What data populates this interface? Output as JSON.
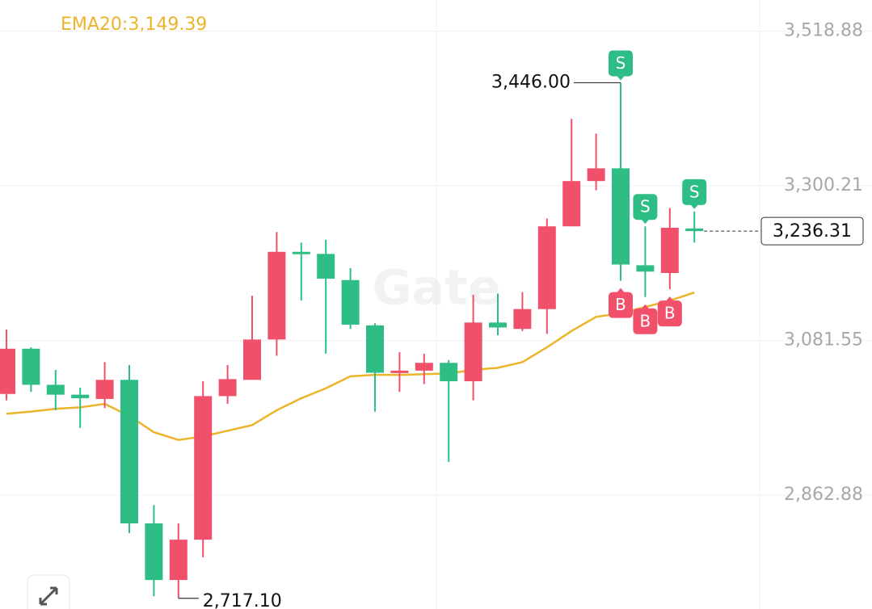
{
  "chart_data": {
    "type": "candlestick",
    "up_color": "#f0506a",
    "down_color": "#2ebd85",
    "open": [
      3006,
      3070,
      3019,
      3005,
      2999,
      3026,
      2823,
      2743,
      2800,
      3003,
      3026,
      3083,
      3207,
      3204,
      3167,
      3103,
      3036,
      3039,
      3050,
      3024,
      3107,
      3098,
      3126,
      3243,
      3307,
      3325,
      3188,
      3177,
      3240
    ],
    "high": [
      3097,
      3072,
      3040,
      3015,
      3051,
      3047,
      2849,
      2823,
      3024,
      3047,
      3145,
      3235,
      3220,
      3224,
      3184,
      3106,
      3065,
      3063,
      3054,
      3146,
      3148,
      3150,
      3254,
      3395,
      3374,
      3446,
      3243,
      3269,
      3264
    ],
    "low": [
      2997,
      3009,
      2983,
      2958,
      2986,
      2809,
      2720,
      2717.1,
      2775,
      2992,
      3026,
      3060,
      3138,
      3063,
      3098,
      2981,
      3009,
      3020,
      2910,
      2997,
      3089,
      3095,
      3091,
      3243,
      3294,
      3166,
      3143,
      3154,
      3220
    ],
    "close": [
      3070,
      3019,
      3005,
      3000,
      3026,
      2823,
      2743,
      2800,
      3003,
      3027,
      3083,
      3207,
      3204,
      3169,
      3104,
      3036,
      3039,
      3050,
      3024,
      3107,
      3100,
      3126,
      3243,
      3307,
      3325,
      3189,
      3179,
      3241,
      3236.31
    ],
    "ema": {
      "label": "EMA20:3,149.39",
      "color": "#ecb42a",
      "values": [
        2978,
        2981,
        2985,
        2987,
        2992,
        2975,
        2952,
        2941,
        2946,
        2954,
        2962,
        2983,
        3000,
        3014,
        3031,
        3033,
        3033,
        3034,
        3035,
        3040,
        3043,
        3051,
        3072,
        3095,
        3115,
        3120,
        3129,
        3138,
        3149.39
      ]
    },
    "ylim": [
      2702,
      3563
    ],
    "yticks": [
      {
        "value": 3518.88,
        "label": "3,518.88"
      },
      {
        "value": 3300.21,
        "label": "3,300.21"
      },
      {
        "value": 3081.55,
        "label": "3,081.55"
      },
      {
        "value": 2862.88,
        "label": "2,862.88"
      }
    ],
    "grid": true,
    "high_annotation": {
      "value": 3446,
      "label": "3,446.00",
      "candle": 25
    },
    "low_annotation": {
      "value": 2717.1,
      "label": "2,717.10",
      "candle": 7
    },
    "last_price": {
      "value": 3236.31,
      "label": "3,236.31"
    },
    "trade_markers": [
      {
        "candle": 25,
        "side": "S"
      },
      {
        "candle": 26,
        "side": "S"
      },
      {
        "candle": 28,
        "side": "S"
      },
      {
        "candle": 25,
        "side": "B"
      },
      {
        "candle": 26,
        "side": "B"
      },
      {
        "candle": 27,
        "side": "B"
      }
    ],
    "watermark": "Gate"
  }
}
